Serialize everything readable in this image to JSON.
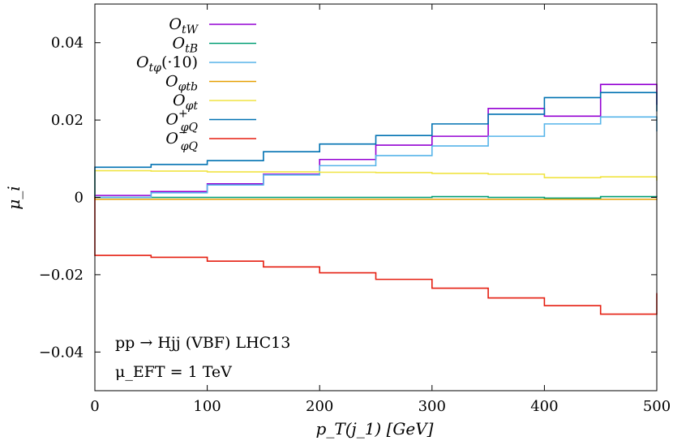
{
  "chart_data": {
    "type": "line",
    "step": true,
    "xlabel": "p_T(j_1) [GeV]",
    "ylabel": "μ_i",
    "xlim": [
      0,
      500
    ],
    "ylim": [
      -0.05,
      0.05
    ],
    "x_ticks": [
      0,
      100,
      200,
      300,
      400,
      500
    ],
    "x_tick_labels": [
      "0",
      "100",
      "200",
      "300",
      "400",
      "500"
    ],
    "y_ticks": [
      0.04,
      0.02,
      0,
      -0.02,
      -0.04
    ],
    "y_tick_labels": [
      "0.04",
      "0.02",
      "0",
      "−0.02",
      "−0.04"
    ],
    "grid": false,
    "legend_position": "top-left",
    "bin_edges": [
      0,
      50,
      100,
      150,
      200,
      250,
      300,
      350,
      400,
      450,
      500
    ],
    "series": [
      {
        "name": "O_tW",
        "color": "#9400d3",
        "values": [
          0.0005,
          0.0015,
          0.0035,
          0.006,
          0.0098,
          0.0135,
          0.0158,
          0.023,
          0.021,
          0.0292
        ]
      },
      {
        "name": "O_tB",
        "color": "#009e73",
        "values": [
          0.0,
          0.0,
          0.0,
          0.0,
          0.0,
          0.0,
          0.0002,
          0.0,
          -0.0002,
          0.0002
        ]
      },
      {
        "name": "O_tφ(·10)",
        "color": "#56b4e9",
        "values": [
          0.0,
          0.0012,
          0.0032,
          0.0058,
          0.0082,
          0.0108,
          0.0133,
          0.0158,
          0.019,
          0.0208
        ]
      },
      {
        "name": "O_φtb",
        "color": "#e69f00",
        "values": [
          -0.0005,
          -0.0005,
          -0.0005,
          -0.0005,
          -0.0005,
          -0.0005,
          -0.0005,
          -0.0005,
          -0.0005,
          -0.0005
        ]
      },
      {
        "name": "O_φt",
        "color": "#f0e442",
        "values": [
          0.0069,
          0.0068,
          0.0066,
          0.0066,
          0.0065,
          0.0064,
          0.0062,
          0.006,
          0.0051,
          0.0053
        ]
      },
      {
        "name": "O⁺_φQ",
        "color": "#0072b2",
        "values": [
          0.0078,
          0.0085,
          0.0095,
          0.0118,
          0.0138,
          0.016,
          0.019,
          0.0215,
          0.0258,
          0.0271
        ]
      },
      {
        "name": "O⁻_φQ",
        "color": "#e51e10",
        "values": [
          -0.015,
          -0.0155,
          -0.0165,
          -0.018,
          -0.0195,
          -0.0212,
          -0.0235,
          -0.026,
          -0.028,
          -0.0302
        ]
      }
    ],
    "legend": [
      {
        "base": "O",
        "sub": "tW",
        "sup": "",
        "suffix": ""
      },
      {
        "base": "O",
        "sub": "tB",
        "sup": "",
        "suffix": ""
      },
      {
        "base": "O",
        "sub": "tφ",
        "sup": "",
        "suffix": "(·10)"
      },
      {
        "base": "O",
        "sub": "φtb",
        "sup": "",
        "suffix": ""
      },
      {
        "base": "O",
        "sub": "φt",
        "sup": "",
        "suffix": ""
      },
      {
        "base": "O",
        "sub": "φQ",
        "sup": "+",
        "suffix": ""
      },
      {
        "base": "O",
        "sub": "φQ",
        "sup": "−",
        "suffix": ""
      }
    ],
    "annotations": [
      "pp → Hjj (VBF) LHC13",
      "μ_EFT = 1 TeV"
    ]
  }
}
